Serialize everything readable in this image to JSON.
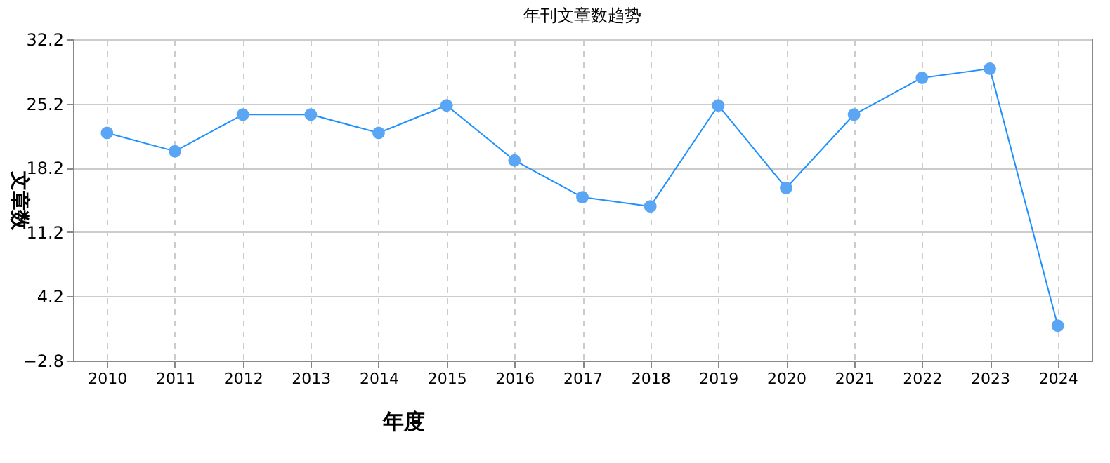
{
  "chart_data": {
    "type": "line",
    "title": "年刊文章数趋势",
    "xlabel": "年度",
    "ylabel": "文章数",
    "categories": [
      "2010",
      "2011",
      "2012",
      "2013",
      "2014",
      "2015",
      "2016",
      "2017",
      "2018",
      "2019",
      "2020",
      "2021",
      "2022",
      "2023",
      "2024"
    ],
    "series": [
      {
        "color": "#1e90ff",
        "values": [
          22,
          20,
          24,
          24,
          22,
          25,
          19,
          15,
          14,
          25,
          16,
          24,
          28,
          29,
          1
        ]
      }
    ],
    "ylim": [
      -2.8,
      32.2
    ],
    "yticks": [
      -2.8,
      4.2,
      11.2,
      18.2,
      25.2,
      32.2
    ],
    "grid": true,
    "marker": "circle",
    "line_style": "solid"
  }
}
